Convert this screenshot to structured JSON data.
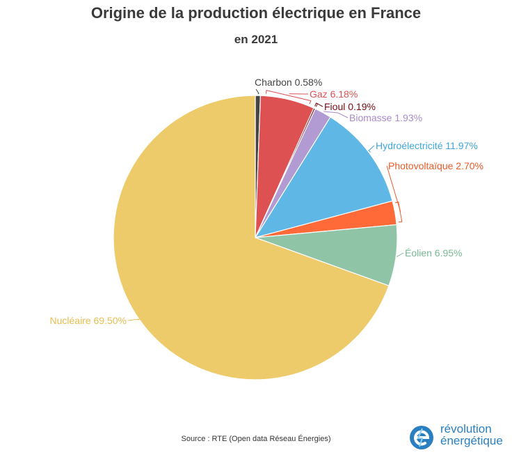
{
  "title": "Origine de la production électrique en France",
  "subtitle": "en 2021",
  "source": "Source : RTE (Open data Réseau Énergies)",
  "brand": {
    "line1": "révolution",
    "line2": "énergétique"
  },
  "chart_data": {
    "type": "pie",
    "title": "Origine de la production électrique en France",
    "subtitle": "en 2021",
    "legend": "none",
    "start": "top, clockwise",
    "slices": [
      {
        "label": "Charbon",
        "value": 0.58,
        "display": "Charbon 0.58%",
        "color": "#444444",
        "label_color": "#444444"
      },
      {
        "label": "Gaz",
        "value": 6.18,
        "display": "Gaz 6.18%",
        "color": "#dd5153",
        "label_color": "#dd5153"
      },
      {
        "label": "Fioul",
        "value": 0.19,
        "display": "Fioul 0.19%",
        "color": "#7a0a12",
        "label_color": "#7a0a12"
      },
      {
        "label": "Biomasse",
        "value": 1.93,
        "display": "Biomasse 1.93%",
        "color": "#b29ad2",
        "label_color": "#a98ac8"
      },
      {
        "label": "Hydroélectricité",
        "value": 11.97,
        "display": "Hydroélectricité 11.97%",
        "color": "#5eb7e5",
        "label_color": "#3fa6dc"
      },
      {
        "label": "Photovoltaïque",
        "value": 2.7,
        "display": "Photovoltaïque 2.70%",
        "color": "#ff6a38",
        "label_color": "#f05a28"
      },
      {
        "label": "Éolien",
        "value": 6.95,
        "display": "Éolien 6.95%",
        "color": "#8fc4a7",
        "label_color": "#7ab894"
      },
      {
        "label": "Nucléaire",
        "value": 69.5,
        "display": "Nucléaire 69.50%",
        "color": "#eecb6a",
        "label_color": "#e6bd4e"
      }
    ]
  }
}
